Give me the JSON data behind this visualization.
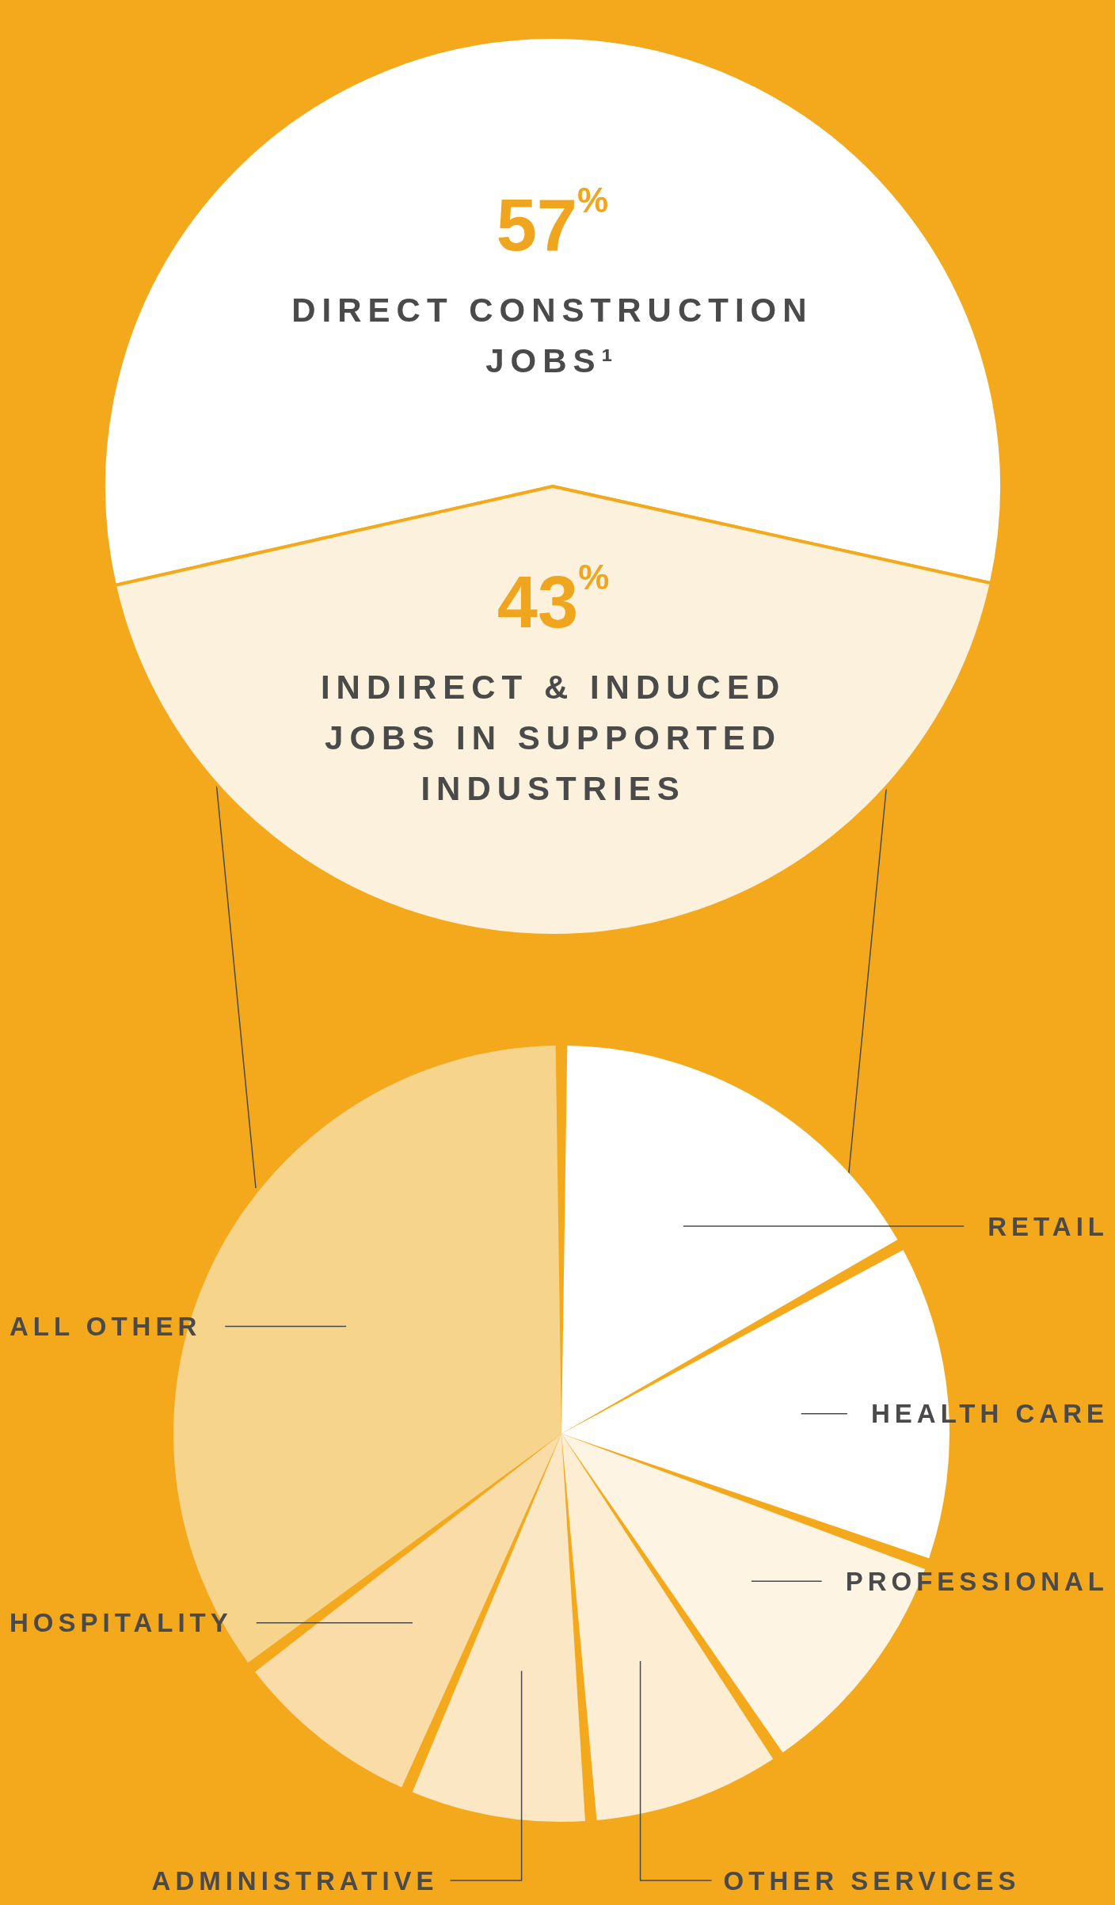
{
  "chart_data": [
    {
      "type": "pie",
      "categories": [
        "DIRECT CONSTRUCTION JOBS¹",
        "INDIRECT & INDUCED JOBS IN SUPPORTED INDUSTRIES"
      ],
      "values": [
        57,
        43
      ],
      "value_labels": [
        "57$^{%}$",
        "43$^{%}$"
      ],
      "colors": [
        "#ffffff",
        "#fbf1dc"
      ]
    },
    {
      "type": "pie",
      "categories": [
        "RETAIL",
        "HEALTH CARE",
        "PROFESSIONAL",
        "OTHER SERVICES",
        "ADMINISTRATIVE",
        "HOSPITALITY",
        "ALL OTHER"
      ],
      "values": [
        17,
        13.5,
        10,
        8,
        7.5,
        8,
        36
      ],
      "colors": [
        "#ffffff",
        "#ffffff",
        "#fdf4e4",
        "#fcedd3",
        "#fbe7c4",
        "#f9dca8",
        "#f7d48c"
      ]
    }
  ]
}
